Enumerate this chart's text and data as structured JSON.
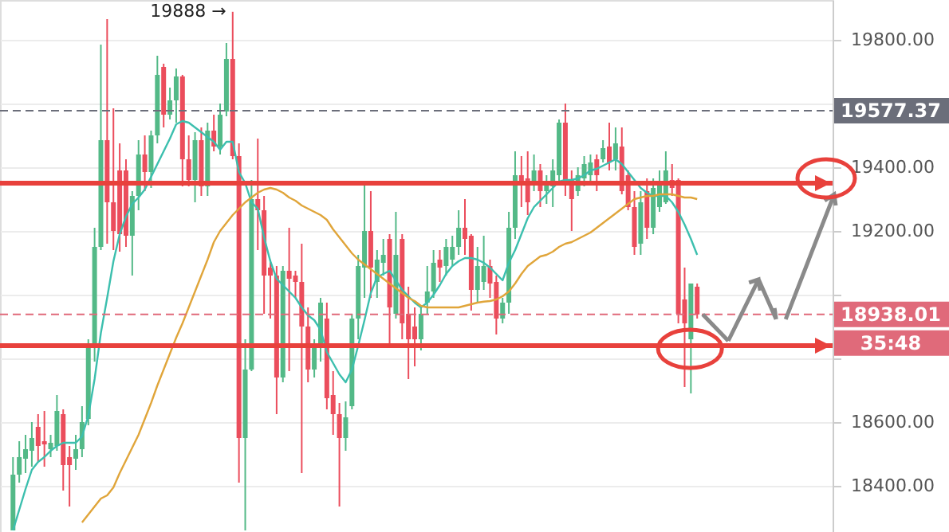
{
  "chart_data": {
    "type": "candlestick",
    "categories": [
      null,
      null,
      null,
      null,
      null,
      null,
      null,
      null,
      null,
      null,
      null,
      null,
      null,
      null,
      null,
      null,
      null,
      null,
      null,
      null,
      null,
      null,
      null,
      null,
      null,
      null,
      null,
      null,
      null,
      null,
      null,
      null,
      null,
      null,
      null,
      null,
      null,
      null,
      null,
      null,
      null,
      null,
      null,
      null,
      null,
      null,
      null,
      null,
      null,
      null,
      null,
      null,
      null,
      null,
      null,
      null,
      null,
      null,
      null,
      null,
      null,
      null,
      null,
      null,
      null,
      null,
      null,
      null,
      null,
      null,
      null,
      null,
      null,
      null,
      null,
      null,
      null,
      null,
      null,
      null,
      null,
      null,
      null,
      null,
      null,
      null,
      null,
      null,
      null,
      null,
      null,
      null,
      null,
      null,
      null,
      null,
      null,
      null,
      null,
      null,
      null,
      null,
      null,
      null,
      null,
      null,
      null,
      null,
      null,
      null
    ],
    "ohlc": [
      [
        18260,
        18490,
        18260,
        18435
      ],
      [
        18435,
        18540,
        18410,
        18490
      ],
      [
        18485,
        18560,
        18440,
        18515
      ],
      [
        18510,
        18600,
        18460,
        18550
      ],
      [
        18585,
        18625,
        18475,
        18525
      ],
      [
        18540,
        18635,
        18460,
        18530
      ],
      [
        18515,
        18560,
        18490,
        18535
      ],
      [
        18525,
        18685,
        18510,
        18635
      ],
      [
        18625,
        18640,
        18385,
        18465
      ],
      [
        18490,
        18525,
        18335,
        18465
      ],
      [
        18485,
        18560,
        18450,
        18515
      ],
      [
        18515,
        18650,
        18490,
        18600
      ],
      [
        18610,
        18860,
        18590,
        18840
      ],
      [
        18840,
        19210,
        18790,
        19150
      ],
      [
        19150,
        19785,
        19140,
        19485
      ],
      [
        19485,
        19865,
        19160,
        19290
      ],
      [
        19290,
        19585,
        19140,
        19200
      ],
      [
        19390,
        19475,
        19135,
        19190
      ],
      [
        19390,
        19425,
        19150,
        19185
      ],
      [
        19185,
        19325,
        19060,
        19310
      ],
      [
        19310,
        19485,
        19265,
        19440
      ],
      [
        19440,
        19500,
        19325,
        19385
      ],
      [
        19385,
        19515,
        19335,
        19500
      ],
      [
        19500,
        19750,
        19475,
        19690
      ],
      [
        19715,
        19725,
        19525,
        19565
      ],
      [
        19565,
        19650,
        19550,
        19610
      ],
      [
        19610,
        19710,
        19540,
        19685
      ],
      [
        19685,
        19690,
        19340,
        19425
      ],
      [
        19425,
        19500,
        19340,
        19360
      ],
      [
        19360,
        19510,
        19290,
        19485
      ],
      [
        19485,
        19525,
        19310,
        19340
      ],
      [
        19340,
        19540,
        19310,
        19515
      ],
      [
        19515,
        19565,
        19450,
        19465
      ],
      [
        19465,
        19600,
        19440,
        19565
      ],
      [
        19575,
        19790,
        19560,
        19740
      ],
      [
        19740,
        19888,
        19425,
        19435
      ],
      [
        19435,
        19475,
        18410,
        18550
      ],
      [
        18550,
        18860,
        18260,
        18765
      ],
      [
        18765,
        19360,
        18760,
        19300
      ],
      [
        19300,
        19490,
        19140,
        19265
      ],
      [
        19265,
        19310,
        18940,
        19060
      ],
      [
        19085,
        19110,
        18925,
        19060
      ],
      [
        19060,
        19090,
        18625,
        18740
      ],
      [
        18740,
        19090,
        18725,
        19075
      ],
      [
        19075,
        19210,
        18760,
        19050
      ],
      [
        19060,
        19075,
        18990,
        19040
      ],
      [
        19040,
        19160,
        18440,
        18900
      ],
      [
        18900,
        18960,
        18725,
        18765
      ],
      [
        18765,
        18860,
        18740,
        18835
      ],
      [
        18835,
        18990,
        18790,
        18975
      ],
      [
        18925,
        18975,
        18640,
        18675
      ],
      [
        18685,
        18760,
        18560,
        18625
      ],
      [
        18625,
        18660,
        18335,
        18550
      ],
      [
        18550,
        18665,
        18510,
        18615
      ],
      [
        18650,
        18940,
        18640,
        18925
      ],
      [
        18925,
        19125,
        18860,
        19090
      ],
      [
        19085,
        19350,
        18990,
        19200
      ],
      [
        19200,
        19325,
        18990,
        19085
      ],
      [
        19040,
        19140,
        18990,
        19110
      ],
      [
        19100,
        19175,
        19060,
        19125
      ],
      [
        19175,
        19190,
        18840,
        18960
      ],
      [
        18940,
        19260,
        18925,
        19125
      ],
      [
        19175,
        19190,
        18860,
        18910
      ],
      [
        18940,
        19025,
        18735,
        18860
      ],
      [
        18900,
        18960,
        18775,
        18860
      ],
      [
        18860,
        18960,
        18825,
        18940
      ],
      [
        18975,
        19090,
        18940,
        19010
      ],
      [
        19010,
        19140,
        18990,
        19100
      ],
      [
        19110,
        19140,
        19040,
        19085
      ],
      [
        19090,
        19175,
        19060,
        19150
      ],
      [
        19110,
        19185,
        19090,
        19150
      ],
      [
        19150,
        19265,
        19125,
        19210
      ],
      [
        19210,
        19300,
        19125,
        19175
      ],
      [
        19185,
        19190,
        18950,
        19015
      ],
      [
        19015,
        19150,
        18975,
        19090
      ],
      [
        19040,
        19185,
        19015,
        19090
      ],
      [
        19090,
        19110,
        18990,
        19035
      ],
      [
        19040,
        19060,
        18875,
        18925
      ],
      [
        18925,
        18990,
        18910,
        18975
      ],
      [
        18975,
        19260,
        18940,
        19210
      ],
      [
        19210,
        19450,
        19175,
        19375
      ],
      [
        19375,
        19435,
        19275,
        19350
      ],
      [
        19365,
        19450,
        19250,
        19290
      ],
      [
        19350,
        19440,
        19325,
        19390
      ],
      [
        19390,
        19410,
        19275,
        19325
      ],
      [
        19325,
        19375,
        19285,
        19350
      ],
      [
        19340,
        19425,
        19275,
        19390
      ],
      [
        19375,
        19550,
        19350,
        19540
      ],
      [
        19540,
        19600,
        19310,
        19350
      ],
      [
        19360,
        19390,
        19200,
        19300
      ],
      [
        19325,
        19400,
        19310,
        19375
      ],
      [
        19365,
        19435,
        19340,
        19410
      ],
      [
        19375,
        19440,
        19350,
        19415
      ],
      [
        19425,
        19440,
        19325,
        19375
      ],
      [
        19425,
        19485,
        19415,
        19460
      ],
      [
        19465,
        19540,
        19390,
        19415
      ],
      [
        19425,
        19525,
        19390,
        19475
      ],
      [
        19465,
        19525,
        19315,
        19325
      ],
      [
        19375,
        19390,
        19265,
        19275
      ],
      [
        19275,
        19325,
        19125,
        19150
      ],
      [
        19160,
        19325,
        19125,
        19290
      ],
      [
        19325,
        19365,
        19175,
        19210
      ],
      [
        19210,
        19365,
        19190,
        19335
      ],
      [
        19275,
        19390,
        19260,
        19350
      ],
      [
        19290,
        19450,
        19285,
        19390
      ],
      [
        19360,
        19410,
        19310,
        19335
      ],
      [
        19360,
        19365,
        18910,
        18940
      ],
      [
        18985,
        19085,
        18710,
        18910
      ],
      [
        18860,
        19035,
        18690,
        19035
      ],
      [
        19025,
        19035,
        18925,
        18938.01
      ]
    ],
    "colors": [
      "#53b987",
      "#53b987",
      "#53b987",
      "#53b987",
      "#eb4d5c",
      "#eb4d5c",
      "#53b987",
      "#53b987",
      "#eb4d5c",
      "#eb4d5c",
      "#53b987",
      "#53b987",
      "#53b987",
      "#53b987",
      "#53b987",
      "#eb4d5c",
      "#eb4d5c",
      "#eb4d5c",
      "#eb4d5c",
      "#53b987",
      "#53b987",
      "#eb4d5c",
      "#53b987",
      "#53b987",
      "#eb4d5c",
      "#53b987",
      "#53b987",
      "#eb4d5c",
      "#eb4d5c",
      "#53b987",
      "#eb4d5c",
      "#53b987",
      "#eb4d5c",
      "#53b987",
      "#53b987",
      "#eb4d5c",
      "#eb4d5c",
      "#53b987",
      "#53b987",
      "#eb4d5c",
      "#eb4d5c",
      "#eb4d5c",
      "#eb4d5c",
      "#53b987",
      "#eb4d5c",
      "#eb4d5c",
      "#eb4d5c",
      "#eb4d5c",
      "#53b987",
      "#53b987",
      "#eb4d5c",
      "#eb4d5c",
      "#eb4d5c",
      "#53b987",
      "#53b987",
      "#53b987",
      "#53b987",
      "#eb4d5c",
      "#53b987",
      "#53b987",
      "#eb4d5c",
      "#53b987",
      "#eb4d5c",
      "#eb4d5c",
      "#eb4d5c",
      "#53b987",
      "#53b987",
      "#53b987",
      "#eb4d5c",
      "#53b987",
      "#53b987",
      "#53b987",
      "#eb4d5c",
      "#eb4d5c",
      "#53b987",
      "#53b987",
      "#eb4d5c",
      "#eb4d5c",
      "#53b987",
      "#53b987",
      "#53b987",
      "#eb4d5c",
      "#eb4d5c",
      "#53b987",
      "#eb4d5c",
      "#53b987",
      "#53b987",
      "#53b987",
      "#eb4d5c",
      "#eb4d5c",
      "#53b987",
      "#53b987",
      "#53b987",
      "#eb4d5c",
      "#53b987",
      "#eb4d5c",
      "#53b987",
      "#eb4d5c",
      "#eb4d5c",
      "#eb4d5c",
      "#53b987",
      "#eb4d5c",
      "#53b987",
      "#53b987",
      "#53b987",
      "#eb4d5c",
      "#eb4d5c",
      "#eb4d5c",
      "#53b987",
      "#eb4d5c"
    ],
    "ylim": [
      18255,
      19925
    ],
    "yticks": [
      {
        "value": 18400,
        "label": "18400.00"
      },
      {
        "value": 18600,
        "label": "18600.00"
      },
      {
        "value": 18800,
        "label": null
      },
      {
        "value": 19000,
        "label": null
      },
      {
        "value": 19200,
        "label": "19200.00"
      },
      {
        "value": 19400,
        "label": "19400.00"
      },
      {
        "value": 19600,
        "label": null
      },
      {
        "value": 19800,
        "label": "19800.00"
      }
    ],
    "tick_labels": "y",
    "grid": "y",
    "series": [
      {
        "type": "line",
        "color": "#3cbfae",
        "values": [
          18260,
          18325,
          18390,
          18450,
          18475,
          18490,
          18510,
          18525,
          18535,
          18535,
          18535,
          18555,
          18620,
          18735,
          18880,
          18990,
          19105,
          19190,
          19245,
          19285,
          19305,
          19330,
          19370,
          19410,
          19450,
          19490,
          19535,
          19545,
          19540,
          19525,
          19510,
          19495,
          19480,
          19455,
          19480,
          19480,
          19385,
          19350,
          19290,
          19270,
          19180,
          19105,
          19050,
          19030,
          19010,
          18990,
          18960,
          18935,
          18920,
          18890,
          18820,
          18785,
          18750,
          18725,
          18765,
          18840,
          18920,
          19005,
          19055,
          19065,
          19075,
          19045,
          19015,
          18995,
          18975,
          18960,
          18975,
          19000,
          19030,
          19065,
          19090,
          19105,
          19115,
          19115,
          19110,
          19100,
          19085,
          19065,
          19045,
          19100,
          19140,
          19190,
          19240,
          19275,
          19295,
          19315,
          19335,
          19355,
          19360,
          19360,
          19365,
          19375,
          19390,
          19395,
          19405,
          19415,
          19425,
          19410,
          19385,
          19360,
          19335,
          19320,
          19310,
          19310,
          19310,
          19290,
          19260,
          19220,
          19175,
          19125
        ]
      },
      {
        "type": "line",
        "color": "#e0a53a",
        "values": [
          null,
          null,
          null,
          null,
          null,
          null,
          null,
          null,
          null,
          null,
          null,
          18285,
          18310,
          18335,
          18360,
          18370,
          18395,
          18440,
          18480,
          18520,
          18560,
          18610,
          18660,
          18715,
          18765,
          18815,
          18865,
          18910,
          18960,
          19010,
          19060,
          19110,
          19165,
          19200,
          19225,
          19250,
          19270,
          19290,
          19305,
          19320,
          19330,
          19335,
          19330,
          19320,
          19305,
          19295,
          19280,
          19270,
          19260,
          19250,
          19235,
          19205,
          19180,
          19155,
          19130,
          19110,
          19095,
          19080,
          19065,
          19050,
          19035,
          19020,
          19005,
          18990,
          18980,
          18965,
          18960,
          18960,
          18960,
          18960,
          18960,
          18960,
          18965,
          18970,
          18975,
          18978,
          18980,
          18985,
          18995,
          19010,
          19035,
          19065,
          19090,
          19105,
          19120,
          19125,
          19135,
          19150,
          19160,
          19165,
          19175,
          19185,
          19195,
          19210,
          19225,
          19240,
          19255,
          19270,
          19285,
          19300,
          19305,
          19310,
          19310,
          19315,
          19315,
          19315,
          19310,
          19305,
          19305,
          19300
        ]
      }
    ],
    "ref_lines": [
      {
        "axis": "y",
        "value": 19577.37,
        "label": "19577.37",
        "color": "#6b6e7a",
        "line_style": "dashed"
      },
      {
        "axis": "y",
        "value": 18938.01,
        "label": "18938.01",
        "color": "#e06a7a",
        "line_style": "dashed"
      },
      {
        "axis": "y",
        "value": 19350,
        "label": null,
        "color": "#e8413c",
        "line_style": "solid"
      },
      {
        "axis": "y",
        "value": 18840,
        "label": null,
        "color": "#e8413c",
        "line_style": "solid"
      }
    ],
    "annotations": [
      "19888 →",
      "35:48"
    ]
  }
}
